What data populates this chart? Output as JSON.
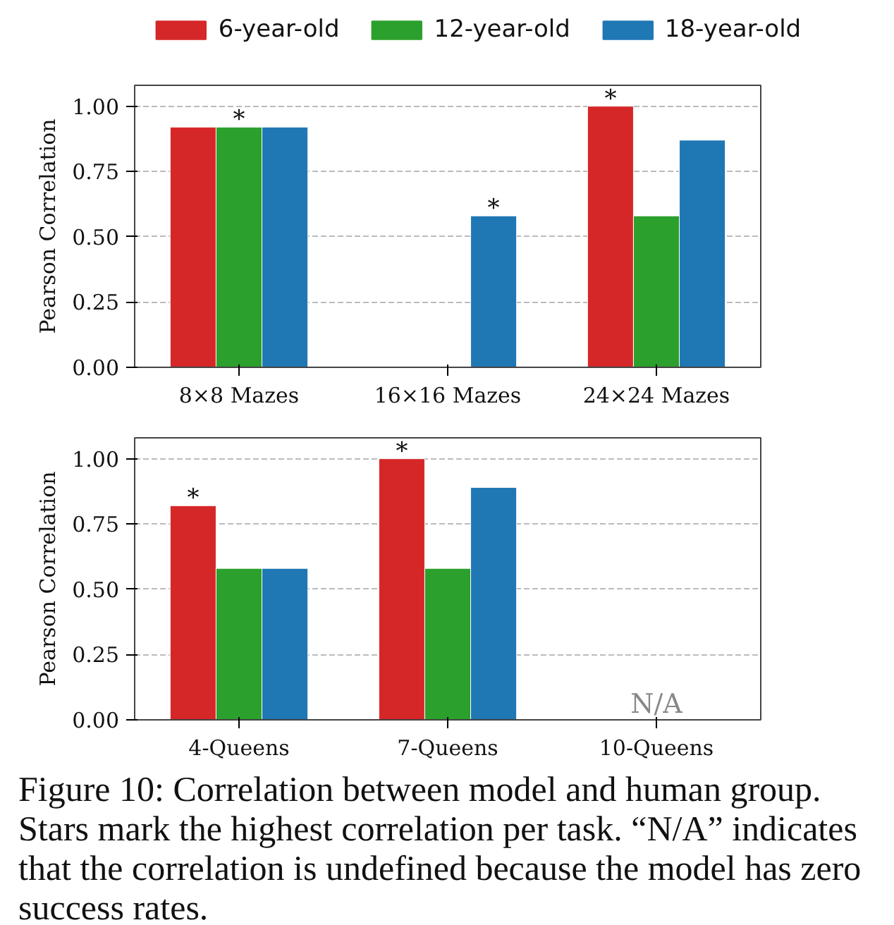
{
  "chart_data": [
    {
      "type": "bar",
      "categories": [
        "8×8 Mazes",
        "16×16 Mazes",
        "24×24 Mazes"
      ],
      "ylabel": "Pearson Correlation",
      "ylim": [
        0,
        1.08
      ],
      "yticks": [
        {
          "value": 0,
          "label": "0.00"
        },
        {
          "value": 0.25,
          "label": "0.25"
        },
        {
          "value": 0.5,
          "label": "0.50"
        },
        {
          "value": 0.75,
          "label": "0.75"
        },
        {
          "value": 1,
          "label": "1.00"
        }
      ],
      "grid": "y",
      "legend": "top",
      "series": [
        {
          "name": "6-year-old",
          "color": "#d62728",
          "values": [
            0.92,
            null,
            1.0
          ]
        },
        {
          "name": "12-year-old",
          "color": "#2ca02c",
          "values": [
            0.92,
            null,
            0.58
          ]
        },
        {
          "name": "18-year-old",
          "color": "#1f77b4",
          "values": [
            0.92,
            0.58,
            0.87
          ]
        }
      ],
      "annotations": [
        "*",
        "*",
        "*"
      ]
    },
    {
      "type": "bar",
      "categories": [
        "4-Queens",
        "7-Queens",
        "10-Queens"
      ],
      "ylabel": "Pearson Correlation",
      "ylim": [
        0,
        1.08
      ],
      "yticks": [
        {
          "value": 0,
          "label": "0.00"
        },
        {
          "value": 0.25,
          "label": "0.25"
        },
        {
          "value": 0.5,
          "label": "0.50"
        },
        {
          "value": 0.75,
          "label": "0.75"
        },
        {
          "value": 1,
          "label": "1.00"
        }
      ],
      "grid": "y",
      "series": [
        {
          "color": "#d62728",
          "values": [
            0.82,
            1.0,
            null
          ]
        },
        {
          "color": "#2ca02c",
          "values": [
            0.58,
            0.58,
            null
          ]
        },
        {
          "color": "#1f77b4",
          "values": [
            0.58,
            0.89,
            null
          ]
        }
      ],
      "annotations": [
        "*",
        "*",
        "N/A",
        "Figure 10: Correlation between model and human group. Stars mark the highest correlation per task. “N/A” indicates that the correlation is undefined because the model has zero success rates."
      ]
    }
  ]
}
